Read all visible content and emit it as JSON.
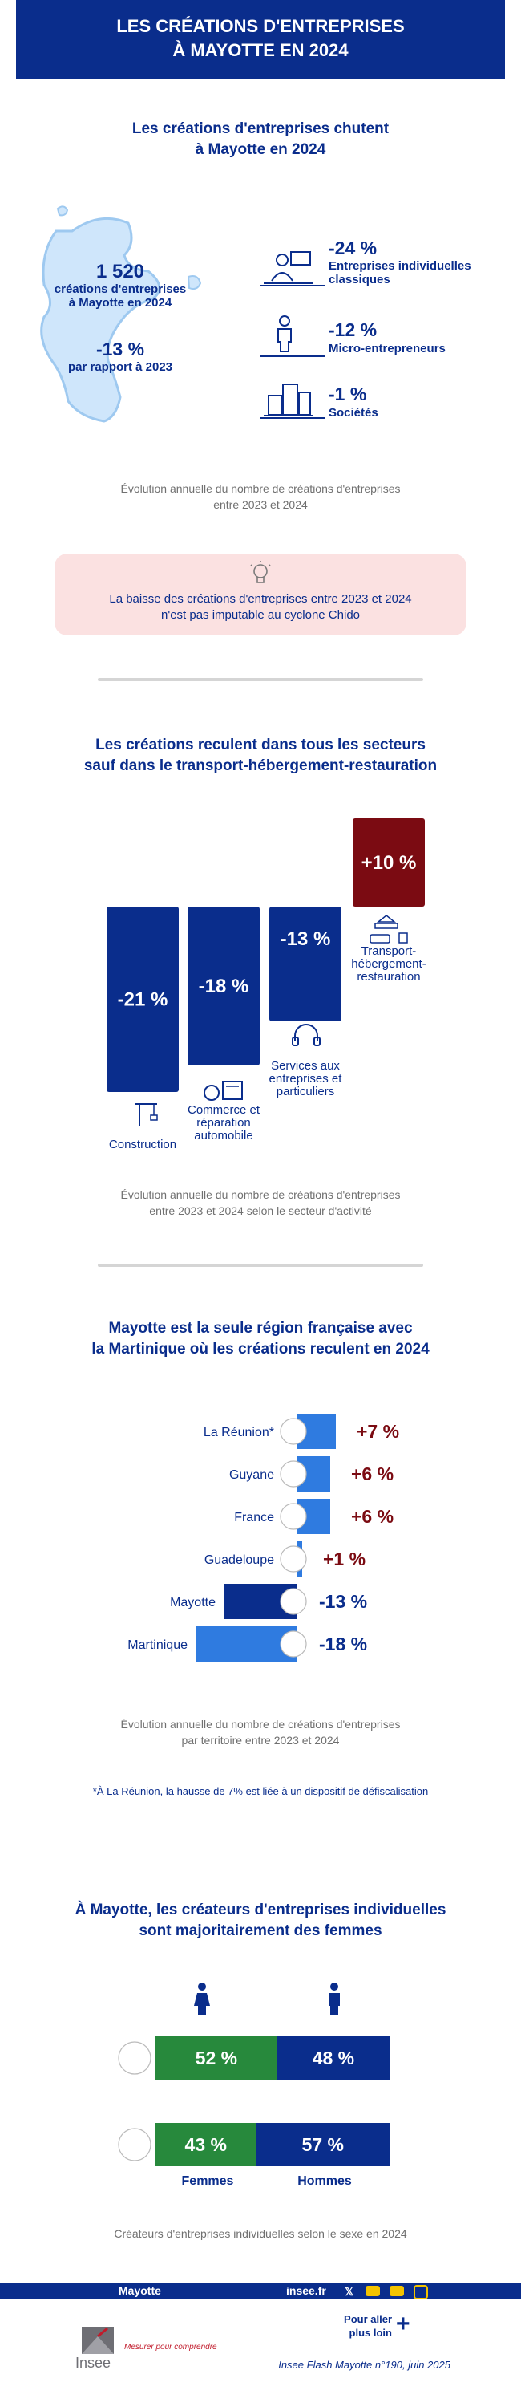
{
  "header": {
    "title_line1": "LES CRÉATIONS D'ENTREPRISES",
    "title_line2": "À MAYOTTE EN 2024"
  },
  "section1": {
    "title_line1": "Les créations d'entreprises chutent",
    "title_line2": "à Mayotte en 2024",
    "total": "1 520",
    "total_label_line1": "créations d'entreprises",
    "total_label_line2": "à Mayotte en 2024",
    "change": "-13 %",
    "change_label": "par rapport à 2023",
    "stats": [
      {
        "value": "-24 %",
        "label_line1": "Entreprises individuelles",
        "label_line2": "classiques",
        "icon": "person-laptop-icon"
      },
      {
        "value": "-12 %",
        "label_line1": "Micro-entrepreneurs",
        "label_line2": "",
        "icon": "person-icon"
      },
      {
        "value": "-1 %",
        "label_line1": "Sociétés",
        "label_line2": "",
        "icon": "buildings-icon"
      }
    ],
    "caption_line1": "Évolution annuelle du nombre de créations d'entreprises",
    "caption_line2": "entre 2023 et 2024"
  },
  "callout": {
    "text_line1": "La baisse des créations d'entreprises entre 2023 et 2024",
    "text_line2": "n'est pas imputable au cyclone Chido"
  },
  "section2": {
    "title_line1": "Les créations reculent dans tous les secteurs",
    "title_line2": "sauf dans le transport-hébergement-restauration",
    "caption_line1": "Évolution annuelle du nombre de créations d'entreprises",
    "caption_line2": "entre 2023 et 2024 selon le secteur d'activité"
  },
  "section3": {
    "title_line1": "Mayotte est la seule région française avec",
    "title_line2": "la Martinique où les créations reculent en 2024",
    "caption_line1": "Évolution annuelle du nombre de créations d'entreprises",
    "caption_line2": "par territoire entre 2023 et 2024",
    "footnote": "*À La Réunion, la hausse de 7% est liée à un dispositif de défiscalisation"
  },
  "section4": {
    "title_line1": "À Mayotte, les créateurs d'entreprises individuelles",
    "title_line2": "sont majoritairement des femmes",
    "women_label": "Femmes",
    "men_label": "Hommes",
    "caption": "Créateurs d'entreprises individuelles selon le sexe en 2024"
  },
  "footer": {
    "region": "Mayotte",
    "site": "insee.fr",
    "more_line1": "Pour aller",
    "more_line2": "plus loin",
    "logo_text": "Insee",
    "tagline": "Mesurer pour comprendre",
    "publication": "Insee Flash Mayotte n°190, juin 2025"
  },
  "colors": {
    "navy": "#0a2d8c",
    "dark_red": "#7b0b12",
    "blue": "#2f7be0",
    "green": "#27893c",
    "callout_bg": "#fbe1e1"
  },
  "chart_data": [
    {
      "type": "bar",
      "categories": [
        "Construction",
        "Commerce et réparation automobile",
        "Services aux entreprises et particuliers",
        "Transport-hébergement-restauration"
      ],
      "values": [
        -21,
        -18,
        -13,
        10
      ],
      "value_labels": [
        "-21 %",
        "-18 %",
        "-13 %",
        "+10 %"
      ],
      "category_label_lines": [
        [
          "Construction"
        ],
        [
          "Commerce et",
          "réparation",
          "automobile"
        ],
        [
          "Services aux",
          "entreprises et",
          "particuliers"
        ],
        [
          "Transport-",
          "hébergement-",
          "restauration"
        ]
      ]
    },
    {
      "type": "bar",
      "orientation": "horizontal",
      "categories": [
        "La Réunion*",
        "Guyane",
        "France",
        "Guadeloupe",
        "Mayotte",
        "Martinique"
      ],
      "values": [
        7,
        6,
        6,
        1,
        -13,
        -18
      ],
      "value_labels": [
        "+7 %",
        "+6 %",
        "+6 %",
        "+1 %",
        "-13 %",
        "-18 %"
      ]
    },
    {
      "type": "bar",
      "stacked": true,
      "orientation": "horizontal",
      "series": [
        {
          "name": "Femmes",
          "values": [
            52,
            43
          ],
          "value_labels": [
            "52 %",
            "43 %"
          ]
        },
        {
          "name": "Hommes",
          "values": [
            48,
            57
          ],
          "value_labels": [
            "48 %",
            "57 %"
          ]
        }
      ]
    }
  ]
}
